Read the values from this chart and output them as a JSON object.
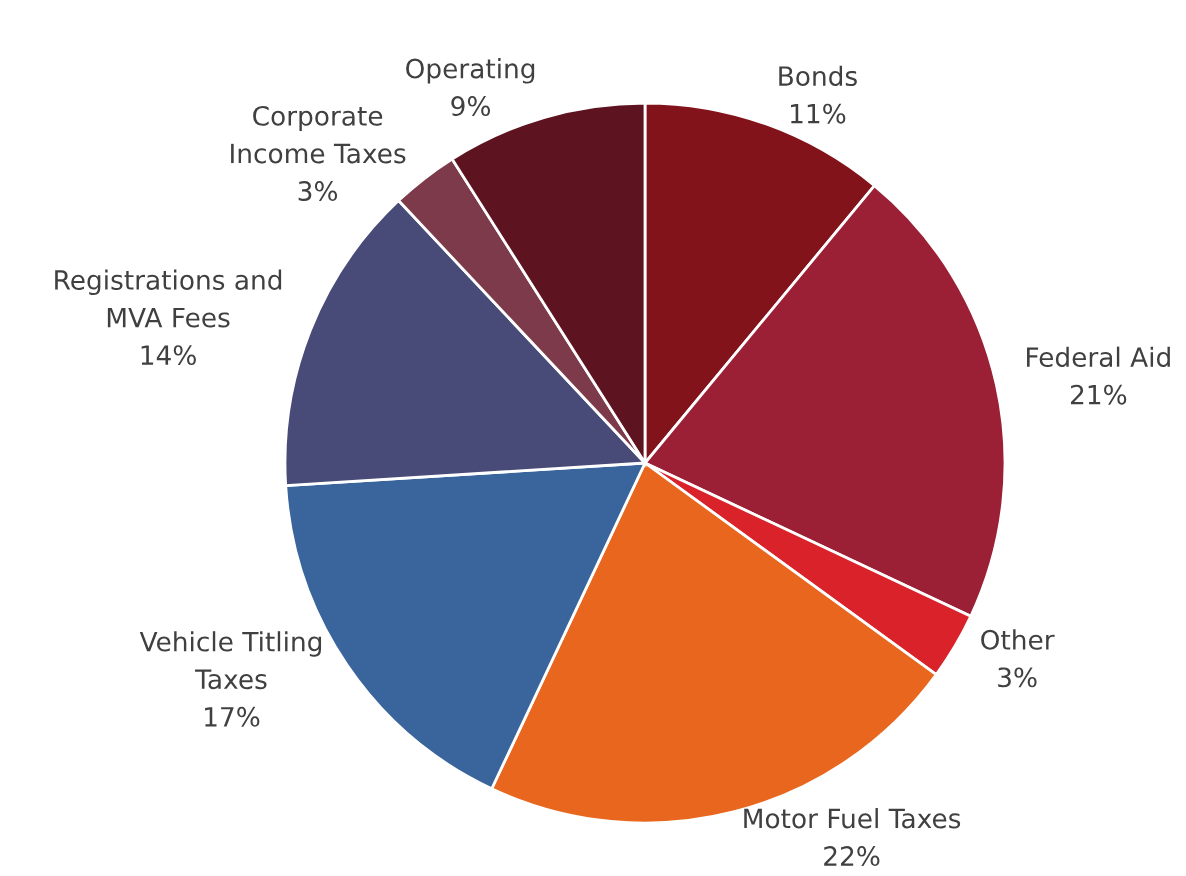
{
  "chart_data": {
    "type": "pie",
    "categories": [
      "Bonds",
      "Federal Aid",
      "Other",
      "Motor Fuel Taxes",
      "Vehicle Titling\nTaxes",
      "Registrations and\nMVA Fees",
      "Corporate\nIncome Taxes",
      "Operating"
    ],
    "values": [
      11,
      21,
      3,
      22,
      17,
      14,
      3,
      9
    ],
    "value_labels": [
      "11%",
      "21%",
      "3%",
      "22%",
      "17%",
      "14%",
      "3%",
      "9%"
    ],
    "colors": [
      "#82131a",
      "#9b2035",
      "#d9222a",
      "#e8661e",
      "#39659c",
      "#484b77",
      "#7c3a4a",
      "#5e1420"
    ]
  }
}
